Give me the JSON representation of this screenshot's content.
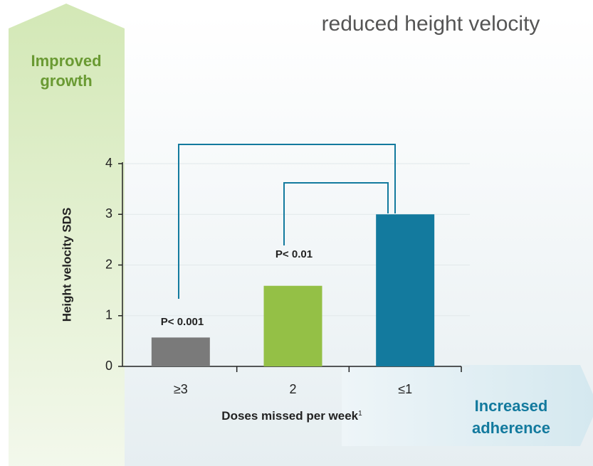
{
  "chart_data": {
    "type": "bar",
    "title": "reduced height velocity",
    "categories": [
      "≥3",
      "2",
      "≤1"
    ],
    "values": [
      0.57,
      1.59,
      3.0
    ],
    "colors": [
      "#7a7a7a",
      "#94c046",
      "#137a9e"
    ],
    "ylim": [
      0,
      4
    ],
    "yticks": [
      0,
      1,
      2,
      3,
      4
    ],
    "grid": true,
    "y_label": "Height velocity SDS",
    "x_label": "Doses missed per week",
    "x_label_note": "1",
    "annotations": [
      "P< 0.001",
      "P< 0.01"
    ],
    "up_arrow_label": [
      "Improved",
      "growth"
    ],
    "right_arrow_label": [
      "Increased",
      "adherence"
    ]
  }
}
